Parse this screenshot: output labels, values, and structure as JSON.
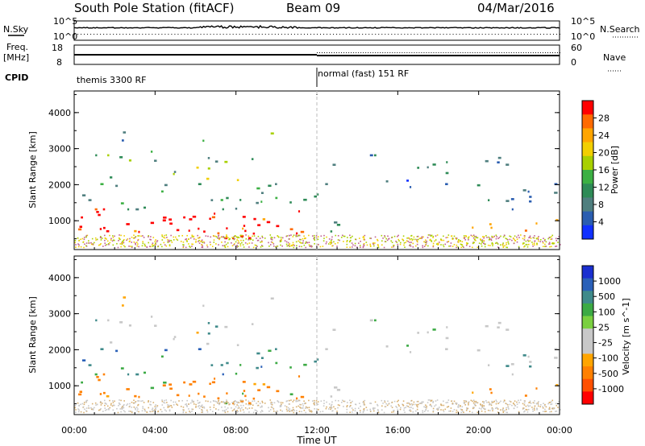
{
  "header": {
    "station": "South Pole Station (fitACF)",
    "beam": "Beam 09",
    "date": "04/Mar/2016"
  },
  "left_labels": {
    "nsky": "N.Sky",
    "freq": "Freq.",
    "freq_unit": "[MHz]",
    "cpid": "CPID"
  },
  "right_labels": {
    "nsearch": "N.Search",
    "nave": "Nave"
  },
  "strip_ticks": {
    "noise_top": "10^5",
    "noise_bottom": "10^0",
    "freq_top": "18",
    "freq_bottom": "8",
    "nave_top": "60",
    "nave_bottom": "0"
  },
  "cpid_segments": [
    {
      "label": "themis 3300 RF",
      "start_hour": 0
    },
    {
      "label": "normal (fast) 151 RF",
      "start_hour": 12
    }
  ],
  "chart_data": [
    {
      "type": "heatmap",
      "panel": "power",
      "ylabel": "Slant Range [km]",
      "colorbar_label": "Power [dB]",
      "colorbar_ticks": [
        "28",
        "24",
        "20",
        "16",
        "12",
        "8",
        "4"
      ],
      "colorbar_colors": [
        "#ff0000",
        "#ff6a00",
        "#ffa500",
        "#f2cf00",
        "#a8d000",
        "#3cb043",
        "#2e8b57",
        "#4f7f7f",
        "#2a5db0",
        "#1030ff"
      ],
      "ylim": [
        200,
        4600
      ],
      "yticks": [
        "1000",
        "2000",
        "3000",
        "4000"
      ],
      "x_range_hours": [
        0,
        24
      ]
    },
    {
      "type": "heatmap",
      "panel": "velocity",
      "ylabel": "Slant Range [km]",
      "colorbar_label": "Velocity [m s^-1]",
      "colorbar_ticks": [
        "1000",
        "500",
        "100",
        "25",
        "-25",
        "-100",
        "-500",
        "-1000"
      ],
      "colorbar_colors": [
        "#1a2fd0",
        "#2a60b8",
        "#3f8a8a",
        "#3caa44",
        "#7ad040",
        "#c8c8c8",
        "#c8c8c8",
        "#ffa500",
        "#ff8000",
        "#ff5000",
        "#ff0000"
      ],
      "ylim": [
        200,
        4600
      ],
      "yticks": [
        "1000",
        "2000",
        "3000",
        "4000"
      ],
      "x_range_hours": [
        0,
        24
      ]
    }
  ],
  "xaxis": {
    "ticks": [
      "00:00",
      "04:00",
      "08:00",
      "12:00",
      "16:00",
      "20:00",
      "00:00"
    ],
    "label": "Time UT"
  }
}
